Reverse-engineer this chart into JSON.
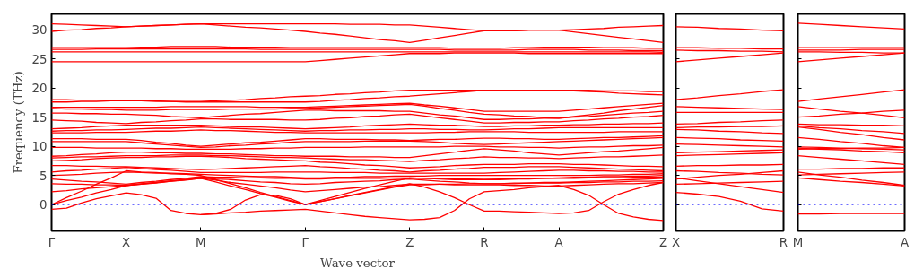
{
  "chart_data": [
    {
      "type": "line",
      "ylabel": "Frequency (THz)",
      "xlabel": "Wave vector",
      "grid": false,
      "line_style": "solid",
      "ylim": [
        -4.5,
        32.7
      ],
      "yticks": [
        0,
        5,
        10,
        15,
        20,
        25,
        30
      ],
      "categories": [
        "Γ",
        null,
        null,
        null,
        null,
        "X",
        null,
        null,
        null,
        null,
        "M",
        null,
        null,
        null,
        null,
        null,
        null,
        "Γ",
        null,
        null,
        null,
        null,
        null,
        null,
        "Z",
        null,
        null,
        null,
        null,
        "R",
        null,
        null,
        null,
        null,
        "A",
        null,
        null,
        null,
        null,
        null,
        null,
        "Z"
      ],
      "ref_lines": [
        {
          "axis": "y",
          "value": 0,
          "color": "#0000ff",
          "line_style": "dotted"
        }
      ],
      "series": [
        {
          "color": "#ff0000",
          "values": [
            31.0,
            30.9,
            30.8,
            30.7,
            30.6,
            30.5,
            30.6,
            30.7,
            30.8,
            30.9,
            31.0,
            31.0,
            31.0,
            31.0,
            31.0,
            31.0,
            31.0,
            31.0,
            31.0,
            31.0,
            30.9,
            30.9,
            30.9,
            30.8,
            30.8,
            30.6,
            30.4,
            30.2,
            30.0,
            29.8,
            29.8,
            29.8,
            29.9,
            29.9,
            29.9,
            30.0,
            30.1,
            30.2,
            30.4,
            30.5,
            30.6,
            30.7
          ]
        },
        {
          "color": "#ff0000",
          "values": [
            29.7,
            29.9,
            30.0,
            30.2,
            30.3,
            30.5,
            30.6,
            30.7,
            30.8,
            30.9,
            31.0,
            30.8,
            30.6,
            30.4,
            30.3,
            30.1,
            29.9,
            29.7,
            29.4,
            29.2,
            28.9,
            28.6,
            28.3,
            28.1,
            27.8,
            28.2,
            28.6,
            29.0,
            29.4,
            29.8,
            29.8,
            29.8,
            29.9,
            29.9,
            29.9,
            29.6,
            29.3,
            29.0,
            28.7,
            28.4,
            28.1,
            27.8
          ]
        },
        {
          "color": "#ff0000",
          "values": [
            26.9,
            26.9,
            26.9,
            26.9,
            26.9,
            26.9,
            27.0,
            27.0,
            27.1,
            27.1,
            27.1,
            27.1,
            27.0,
            27.0,
            27.0,
            27.0,
            26.9,
            26.9,
            26.9,
            26.9,
            26.9,
            26.9,
            26.9,
            26.9,
            26.9,
            26.9,
            26.9,
            26.8,
            26.8,
            26.8,
            26.8,
            26.9,
            26.9,
            27.0,
            27.0,
            27.0,
            27.0,
            26.9,
            26.9,
            26.9,
            26.8,
            26.8
          ]
        },
        {
          "color": "#ff0000",
          "values": [
            26.6,
            26.6,
            26.6,
            26.7,
            26.7,
            26.7,
            26.7,
            26.7,
            26.7,
            26.7,
            26.7,
            26.7,
            26.7,
            26.7,
            26.6,
            26.6,
            26.6,
            26.6,
            26.6,
            26.6,
            26.6,
            26.6,
            26.6,
            26.6,
            26.6,
            26.6,
            26.6,
            26.5,
            26.5,
            26.5,
            26.5,
            26.5,
            26.6,
            26.6,
            26.6,
            26.6,
            26.5,
            26.5,
            26.5,
            26.4,
            26.4,
            26.4
          ]
        },
        {
          "color": "#ff0000",
          "values": [
            26.2,
            26.2,
            26.2,
            26.2,
            26.2,
            26.2,
            26.2,
            26.2,
            26.2,
            26.2,
            26.2,
            26.2,
            26.2,
            26.2,
            26.2,
            26.2,
            26.2,
            26.2,
            26.2,
            26.2,
            26.2,
            26.2,
            26.2,
            26.2,
            26.2,
            26.2,
            26.2,
            26.2,
            26.2,
            26.2,
            26.2,
            26.2,
            26.2,
            26.2,
            26.2,
            26.2,
            26.2,
            26.2,
            26.2,
            26.2,
            26.2,
            26.1
          ]
        },
        {
          "color": "#ff0000",
          "values": [
            24.5,
            24.5,
            24.5,
            24.5,
            24.5,
            24.5,
            24.5,
            24.5,
            24.5,
            24.5,
            24.5,
            24.5,
            24.5,
            24.5,
            24.5,
            24.5,
            24.5,
            24.5,
            24.7,
            24.9,
            25.1,
            25.3,
            25.5,
            25.7,
            25.9,
            25.9,
            25.9,
            26.0,
            26.0,
            26.0,
            26.0,
            26.0,
            25.9,
            25.9,
            25.9,
            25.9,
            25.9,
            25.9,
            25.9,
            25.9,
            25.9,
            25.9
          ]
        },
        {
          "color": "#ff0000",
          "values": [
            18.0,
            18.0,
            17.9,
            17.9,
            17.8,
            17.8,
            17.8,
            17.8,
            17.7,
            17.7,
            17.7,
            17.8,
            17.9,
            18.0,
            18.2,
            18.3,
            18.5,
            18.6,
            18.7,
            18.9,
            19.0,
            19.2,
            19.3,
            19.5,
            19.6,
            19.6,
            19.6,
            19.6,
            19.6,
            19.6,
            19.6,
            19.6,
            19.6,
            19.6,
            19.6,
            19.6,
            19.6,
            19.5,
            19.5,
            19.5,
            19.4,
            19.4
          ]
        },
        {
          "color": "#ff0000",
          "values": [
            17.6,
            17.6,
            17.7,
            17.7,
            17.8,
            17.8,
            17.8,
            17.7,
            17.7,
            17.6,
            17.6,
            17.6,
            17.6,
            17.6,
            17.6,
            17.6,
            17.6,
            17.6,
            17.7,
            17.9,
            18.0,
            18.2,
            18.3,
            18.5,
            18.6,
            18.8,
            19.0,
            19.2,
            19.4,
            19.6,
            19.6,
            19.6,
            19.6,
            19.6,
            19.6,
            19.5,
            19.4,
            19.3,
            19.1,
            19.0,
            18.9,
            18.8
          ]
        },
        {
          "color": "#ff0000",
          "values": [
            16.7,
            16.7,
            16.7,
            16.7,
            16.7,
            16.7,
            16.7,
            16.7,
            16.8,
            16.8,
            16.8,
            16.8,
            16.8,
            16.8,
            16.7,
            16.7,
            16.7,
            16.7,
            16.8,
            16.9,
            17.0,
            17.1,
            17.2,
            17.3,
            17.4,
            17.1,
            16.9,
            16.6,
            16.3,
            16.0,
            16.0,
            16.0,
            16.0,
            16.0,
            16.0,
            16.2,
            16.4,
            16.6,
            16.8,
            17.0,
            17.2,
            17.4
          ]
        },
        {
          "color": "#ff0000",
          "values": [
            16.5,
            16.4,
            16.4,
            16.3,
            16.3,
            16.2,
            16.2,
            16.2,
            16.3,
            16.3,
            16.3,
            16.3,
            16.4,
            16.4,
            16.4,
            16.4,
            16.5,
            16.5,
            16.6,
            16.7,
            16.8,
            16.9,
            17.0,
            17.1,
            17.2,
            16.9,
            16.5,
            16.2,
            15.8,
            15.5,
            15.4,
            15.2,
            15.1,
            14.9,
            14.8,
            15.1,
            15.4,
            15.7,
            16.1,
            16.4,
            16.7,
            17.0
          ]
        },
        {
          "color": "#ff0000",
          "values": [
            15.7,
            15.7,
            15.6,
            15.6,
            15.5,
            15.5,
            15.4,
            15.3,
            15.1,
            15.0,
            14.9,
            15.1,
            15.3,
            15.5,
            15.6,
            15.8,
            16.0,
            16.2,
            16.2,
            16.1,
            16.1,
            16.1,
            16.1,
            16.0,
            16.0,
            15.7,
            15.4,
            15.2,
            14.9,
            14.6,
            14.6,
            14.7,
            14.7,
            14.8,
            14.8,
            15.0,
            15.1,
            15.3,
            15.5,
            15.7,
            15.8,
            16.0
          ]
        },
        {
          "color": "#ff0000",
          "values": [
            14.5,
            14.4,
            14.3,
            14.1,
            14.0,
            13.9,
            14.1,
            14.2,
            14.4,
            14.5,
            14.7,
            14.7,
            14.6,
            14.6,
            14.6,
            14.6,
            14.5,
            14.5,
            14.6,
            14.8,
            14.9,
            15.1,
            15.2,
            15.4,
            15.5,
            15.2,
            14.9,
            14.6,
            14.3,
            14.0,
            14.0,
            14.1,
            14.1,
            14.2,
            14.2,
            14.4,
            14.5,
            14.7,
            14.8,
            15.0,
            15.1,
            15.3
          ]
        },
        {
          "color": "#ff0000",
          "values": [
            13.0,
            13.1,
            13.2,
            13.4,
            13.5,
            13.6,
            13.6,
            13.6,
            13.6,
            13.6,
            13.6,
            13.5,
            13.4,
            13.3,
            13.3,
            13.2,
            13.1,
            13.0,
            13.1,
            13.2,
            13.3,
            13.5,
            13.6,
            13.7,
            13.8,
            13.7,
            13.6,
            13.6,
            13.5,
            13.4,
            13.4,
            13.5,
            13.5,
            13.6,
            13.6,
            13.7,
            13.7,
            13.8,
            13.8,
            13.9,
            13.9,
            14.0
          ]
        },
        {
          "color": "#ff0000",
          "values": [
            12.6,
            12.7,
            12.7,
            12.8,
            12.8,
            12.9,
            13.0,
            13.1,
            13.1,
            13.2,
            13.3,
            13.2,
            13.1,
            13.0,
            12.9,
            12.8,
            12.7,
            12.6,
            12.7,
            12.7,
            12.8,
            12.8,
            12.9,
            12.9,
            13.0,
            13.0,
            12.9,
            12.9,
            12.8,
            12.8,
            12.9,
            13.0,
            13.0,
            13.1,
            13.2,
            13.2,
            13.2,
            13.2,
            13.2,
            13.2,
            13.2,
            13.2
          ]
        },
        {
          "color": "#ff0000",
          "values": [
            12.3,
            12.3,
            12.3,
            12.4,
            12.4,
            12.4,
            12.5,
            12.6,
            12.6,
            12.7,
            12.8,
            12.7,
            12.7,
            12.6,
            12.5,
            12.4,
            12.4,
            12.3,
            12.3,
            12.3,
            12.3,
            12.3,
            12.3,
            12.3,
            12.3,
            12.3,
            12.4,
            12.4,
            12.5,
            12.5,
            12.5,
            12.5,
            12.4,
            12.4,
            12.4,
            12.4,
            12.4,
            12.4,
            12.5,
            12.5,
            12.5,
            12.5
          ]
        },
        {
          "color": "#ff0000",
          "values": [
            11.3,
            11.3,
            11.3,
            11.2,
            11.2,
            11.2,
            11.0,
            10.7,
            10.5,
            10.2,
            10.0,
            10.2,
            10.4,
            10.6,
            10.7,
            10.9,
            11.1,
            11.3,
            11.3,
            11.2,
            11.2,
            11.2,
            11.1,
            11.1,
            11.0,
            11.1,
            11.2,
            11.2,
            11.3,
            11.4,
            11.4,
            11.3,
            11.3,
            11.2,
            11.2,
            11.3,
            11.4,
            11.5,
            11.5,
            11.6,
            11.7,
            11.8
          ]
        },
        {
          "color": "#ff0000",
          "values": [
            10.8,
            10.8,
            10.8,
            10.8,
            10.8,
            10.8,
            10.6,
            10.4,
            10.2,
            10.0,
            9.8,
            9.9,
            10.1,
            10.2,
            10.4,
            10.5,
            10.7,
            10.8,
            10.8,
            10.8,
            10.8,
            10.9,
            10.9,
            10.9,
            10.9,
            10.8,
            10.7,
            10.5,
            10.4,
            10.3,
            10.4,
            10.5,
            10.6,
            10.7,
            10.8,
            10.9,
            11.0,
            11.1,
            11.2,
            11.3,
            11.4,
            11.5
          ]
        },
        {
          "color": "#ff0000",
          "values": [
            9.8,
            9.8,
            9.8,
            9.7,
            9.7,
            9.7,
            9.7,
            9.6,
            9.6,
            9.5,
            9.5,
            9.5,
            9.5,
            9.6,
            9.6,
            9.7,
            9.7,
            9.8,
            9.8,
            9.8,
            9.8,
            9.9,
            9.9,
            9.9,
            9.9,
            9.9,
            9.9,
            10.0,
            10.0,
            10.0,
            9.9,
            9.9,
            9.8,
            9.8,
            9.7,
            9.8,
            9.9,
            9.9,
            10.0,
            10.1,
            10.1,
            10.2
          ]
        },
        {
          "color": "#ff0000",
          "values": [
            8.3,
            8.4,
            8.6,
            8.7,
            8.9,
            9.0,
            9.0,
            8.9,
            8.9,
            8.8,
            8.8,
            8.7,
            8.7,
            8.6,
            8.5,
            8.4,
            8.4,
            8.3,
            8.3,
            8.3,
            8.2,
            8.2,
            8.2,
            8.1,
            8.1,
            8.4,
            8.7,
            9.0,
            9.3,
            9.6,
            9.4,
            9.2,
            8.9,
            8.7,
            8.5,
            8.7,
            8.9,
            9.1,
            9.2,
            9.4,
            9.6,
            9.8
          ]
        },
        {
          "color": "#ff0000",
          "values": [
            8.0,
            8.1,
            8.2,
            8.2,
            8.3,
            8.4,
            8.4,
            8.4,
            8.5,
            8.5,
            8.5,
            8.4,
            8.4,
            8.3,
            8.2,
            8.1,
            8.1,
            8.0,
            7.9,
            7.8,
            7.7,
            7.7,
            7.6,
            7.5,
            7.4,
            7.6,
            7.7,
            7.9,
            8.0,
            8.2,
            8.1,
            8.1,
            8.0,
            8.0,
            7.9,
            8.0,
            8.1,
            8.2,
            8.2,
            8.3,
            8.4,
            8.5
          ]
        },
        {
          "color": "#ff0000",
          "values": [
            7.5,
            7.6,
            7.7,
            7.9,
            8.0,
            8.1,
            8.1,
            8.2,
            8.2,
            8.3,
            8.3,
            8.2,
            8.1,
            7.9,
            7.8,
            7.7,
            7.6,
            7.5,
            7.3,
            7.2,
            7.0,
            6.8,
            6.7,
            6.5,
            6.3,
            6.4,
            6.5,
            6.7,
            6.8,
            6.9,
            6.9,
            6.9,
            7.0,
            7.0,
            7.0,
            6.9,
            6.9,
            6.8,
            6.7,
            6.6,
            6.6,
            6.5
          ]
        },
        {
          "color": "#ff0000",
          "values": [
            6.7,
            6.7,
            6.6,
            6.6,
            6.5,
            6.5,
            6.4,
            6.3,
            6.2,
            6.1,
            6.0,
            6.1,
            6.2,
            6.3,
            6.4,
            6.5,
            6.6,
            6.7,
            6.5,
            6.4,
            6.2,
            6.1,
            5.9,
            5.8,
            5.6,
            5.8,
            5.9,
            6.1,
            6.2,
            6.4,
            6.4,
            6.4,
            6.5,
            6.5,
            6.5,
            6.4,
            6.3,
            6.2,
            6.1,
            6.0,
            5.9,
            5.8
          ]
        },
        {
          "color": "#ff0000",
          "values": [
            5.6,
            5.8,
            5.9,
            6.1,
            6.2,
            6.4,
            6.2,
            6.0,
            5.9,
            5.7,
            5.5,
            5.5,
            5.5,
            5.5,
            5.5,
            5.6,
            5.6,
            5.6,
            5.6,
            5.5,
            5.5,
            5.5,
            5.4,
            5.4,
            5.4,
            5.4,
            5.4,
            5.4,
            5.4,
            5.4,
            5.5,
            5.6,
            5.7,
            5.8,
            5.9,
            5.9,
            5.8,
            5.8,
            5.7,
            5.7,
            5.6,
            5.6
          ]
        },
        {
          "color": "#ff0000",
          "values": [
            5.0,
            5.1,
            5.2,
            5.4,
            5.5,
            5.6,
            5.5,
            5.4,
            5.4,
            5.3,
            5.2,
            5.1,
            5.0,
            4.9,
            4.8,
            4.8,
            4.7,
            4.6,
            4.6,
            4.7,
            4.7,
            4.8,
            4.8,
            4.9,
            4.9,
            4.9,
            5.0,
            5.0,
            5.0,
            5.0,
            5.0,
            5.0,
            5.0,
            5.0,
            5.0,
            5.0,
            5.0,
            5.1,
            5.1,
            5.2,
            5.2,
            5.3
          ]
        },
        {
          "color": "#ff0000",
          "values": [
            4.4,
            4.2,
            4.0,
            3.9,
            3.7,
            3.5,
            3.8,
            4.0,
            4.3,
            4.5,
            4.8,
            4.7,
            4.7,
            4.6,
            4.6,
            4.5,
            4.5,
            4.4,
            4.4,
            4.5,
            4.5,
            4.5,
            4.5,
            4.6,
            4.6,
            4.5,
            4.5,
            4.4,
            4.4,
            4.3,
            4.4,
            4.4,
            4.5,
            4.5,
            4.6,
            4.7,
            4.7,
            4.8,
            4.8,
            4.9,
            4.9,
            5.0
          ]
        },
        {
          "color": "#ff0000",
          "values": [
            3.6,
            3.5,
            3.5,
            3.4,
            3.4,
            3.3,
            3.6,
            3.8,
            4.1,
            4.3,
            4.6,
            4.4,
            4.3,
            4.1,
            3.9,
            3.8,
            3.6,
            3.5,
            3.6,
            3.8,
            3.9,
            4.0,
            4.1,
            4.3,
            4.4,
            4.2,
            4.0,
            3.9,
            3.7,
            3.6,
            3.6,
            3.7,
            3.7,
            3.8,
            3.8,
            3.9,
            4.0,
            4.1,
            4.2,
            4.3,
            4.4,
            4.5
          ]
        },
        {
          "color": "#ff0000",
          "values": [
            2.2,
            2.4,
            2.7,
            2.9,
            3.1,
            3.3,
            3.5,
            3.8,
            4.0,
            4.3,
            4.5,
            4.2,
            3.8,
            3.5,
            3.2,
            2.9,
            2.5,
            2.2,
            2.4,
            2.6,
            2.8,
            3.0,
            3.1,
            3.3,
            3.5,
            3.5,
            3.5,
            3.4,
            3.4,
            3.4,
            3.4,
            3.3,
            3.3,
            3.2,
            3.2,
            3.3,
            3.4,
            3.5,
            3.6,
            3.6,
            3.7,
            3.8
          ]
        },
        {
          "color": "#ff0000",
          "values": [
            -0.8,
            -0.6,
            0.3,
            1.0,
            1.5,
            2.0,
            1.7,
            1.1,
            -1.0,
            -1.5,
            -1.7,
            -1.5,
            -0.8,
            0.8,
            1.7,
            1.6,
            1.0,
            0.0,
            0.5,
            1.0,
            1.6,
            2.1,
            2.6,
            3.1,
            3.6,
            3.0,
            2.2,
            1.2,
            0.0,
            -1.1,
            -1.1,
            -1.2,
            -1.3,
            -1.4,
            -1.5,
            -1.4,
            -1.0,
            0.5,
            1.8,
            2.6,
            3.3,
            3.8
          ]
        },
        {
          "color": "#ff0000",
          "values": [
            0.0,
            0.7,
            1.3,
            2.0,
            2.6,
            3.3,
            3.5,
            3.7,
            4.0,
            4.2,
            4.5,
            3.9,
            3.2,
            2.6,
            1.9,
            1.3,
            0.6,
            0.0,
            0.7,
            1.4,
            2.1,
            2.8,
            3.4,
            4.0,
            4.6,
            4.5,
            4.4,
            4.3,
            4.3,
            4.3,
            4.3,
            4.4,
            4.4,
            4.5,
            4.5,
            4.5,
            4.6,
            4.6,
            4.6,
            4.7,
            4.7,
            4.7
          ]
        },
        {
          "color": "#ff0000",
          "values": [
            0.0,
            1.2,
            2.3,
            3.5,
            4.6,
            5.8,
            5.6,
            5.5,
            5.3,
            5.2,
            5.0,
            4.3,
            3.6,
            2.9,
            2.1,
            1.4,
            0.7,
            0.0,
            0.5,
            1.0,
            1.5,
            2.0,
            2.5,
            3.0,
            3.4,
            3.4,
            3.5,
            3.5,
            3.6,
            3.6,
            3.6,
            3.6,
            3.7,
            3.7,
            3.7,
            3.8,
            3.8,
            3.9,
            3.9,
            4.0,
            4.0,
            4.1
          ]
        },
        {
          "color": "#ff0000",
          "values": [
            null,
            null,
            null,
            null,
            null,
            null,
            null,
            null,
            null,
            null,
            -1.7,
            -1.6,
            -1.4,
            -1.3,
            -1.1,
            -1.0,
            -0.9,
            -0.8,
            -1.1,
            -1.4,
            -1.7,
            -2.0,
            -2.2,
            -2.4,
            -2.6,
            -2.5,
            -2.2,
            -1.0,
            1.0,
            2.2,
            2.4,
            2.6,
            2.9,
            3.1,
            3.3,
            2.6,
            1.6,
            0.0,
            -1.5,
            -2.1,
            -2.5,
            -2.7
          ]
        }
      ]
    },
    {
      "type": "line",
      "grid": false,
      "tick_labels": "x",
      "ylim": [
        -4.5,
        32.7
      ],
      "yticks": [
        0,
        5,
        10,
        15,
        20,
        25,
        30
      ],
      "categories": [
        "X",
        null,
        null,
        null,
        null,
        "R"
      ],
      "ref_lines": [
        {
          "axis": "y",
          "value": 0,
          "color": "#0000ff",
          "line_style": "dotted"
        }
      ],
      "series": [
        {
          "color": "#ff0000",
          "values": [
            30.5,
            30.4,
            30.2,
            30.1,
            29.9,
            29.8
          ]
        },
        {
          "color": "#ff0000",
          "values": [
            26.9,
            26.9,
            26.8,
            26.8,
            26.7,
            26.7
          ]
        },
        {
          "color": "#ff0000",
          "values": [
            26.5,
            26.4,
            26.4,
            26.3,
            26.3,
            26.2
          ]
        },
        {
          "color": "#ff0000",
          "values": [
            24.5,
            24.8,
            25.1,
            25.4,
            25.7,
            26.0
          ]
        },
        {
          "color": "#ff0000",
          "values": [
            18.0,
            18.3,
            18.7,
            19.0,
            19.4,
            19.7
          ]
        },
        {
          "color": "#ff0000",
          "values": [
            16.8,
            16.7,
            16.6,
            16.5,
            16.4,
            16.3
          ]
        },
        {
          "color": "#ff0000",
          "values": [
            15.8,
            15.8,
            15.8,
            15.8,
            15.8,
            15.8
          ]
        },
        {
          "color": "#ff0000",
          "values": [
            13.8,
            13.9,
            14.1,
            14.2,
            14.4,
            14.5
          ]
        },
        {
          "color": "#ff0000",
          "values": [
            13.2,
            13.3,
            13.3,
            13.4,
            13.4,
            13.5
          ]
        },
        {
          "color": "#ff0000",
          "values": [
            12.9,
            12.8,
            12.6,
            12.5,
            12.3,
            12.2
          ]
        },
        {
          "color": "#ff0000",
          "values": [
            11.5,
            11.4,
            11.3,
            11.1,
            11.0,
            10.9
          ]
        },
        {
          "color": "#ff0000",
          "values": [
            10.4,
            10.3,
            10.2,
            10.1,
            10.0,
            9.9
          ]
        },
        {
          "color": "#ff0000",
          "values": [
            8.9,
            9.0,
            9.1,
            9.2,
            9.3,
            9.4
          ]
        },
        {
          "color": "#ff0000",
          "values": [
            8.4,
            8.5,
            8.6,
            8.7,
            8.8,
            8.9
          ]
        },
        {
          "color": "#ff0000",
          "values": [
            6.6,
            6.7,
            6.7,
            6.8,
            6.8,
            6.9
          ]
        },
        {
          "color": "#ff0000",
          "values": [
            5.8,
            5.7,
            5.5,
            5.4,
            5.2,
            5.1
          ]
        },
        {
          "color": "#ff0000",
          "values": [
            4.4,
            4.7,
            5.0,
            5.2,
            5.5,
            5.8
          ]
        },
        {
          "color": "#ff0000",
          "values": [
            3.5,
            3.6,
            3.7,
            3.8,
            3.9,
            4.0
          ]
        },
        {
          "color": "#ff0000",
          "values": [
            4.6,
            4.1,
            3.6,
            3.1,
            2.6,
            2.1
          ]
        },
        {
          "color": "#ff0000",
          "values": [
            2.1,
            1.8,
            1.4,
            0.6,
            -0.7,
            -1.1
          ]
        }
      ]
    },
    {
      "type": "line",
      "grid": false,
      "tick_labels": "x",
      "ylim": [
        -4.5,
        32.7
      ],
      "yticks": [
        0,
        5,
        10,
        15,
        20,
        25,
        30
      ],
      "categories": [
        "M",
        null,
        null,
        null,
        null,
        "A"
      ],
      "ref_lines": [
        {
          "axis": "y",
          "value": 0,
          "color": "#0000ff",
          "line_style": "dotted"
        }
      ],
      "series": [
        {
          "color": "#ff0000",
          "values": [
            31.1,
            30.9,
            30.7,
            30.5,
            30.3,
            30.1
          ]
        },
        {
          "color": "#ff0000",
          "values": [
            26.9,
            26.9,
            26.9,
            26.9,
            26.9,
            26.9
          ]
        },
        {
          "color": "#ff0000",
          "values": [
            26.5,
            26.5,
            26.5,
            26.6,
            26.6,
            26.6
          ]
        },
        {
          "color": "#ff0000",
          "values": [
            26.2,
            26.2,
            26.1,
            26.1,
            26.0,
            26.0
          ]
        },
        {
          "color": "#ff0000",
          "values": [
            24.5,
            24.8,
            25.1,
            25.4,
            25.7,
            26.0
          ]
        },
        {
          "color": "#ff0000",
          "values": [
            17.7,
            18.1,
            18.5,
            18.9,
            19.3,
            19.7
          ]
        },
        {
          "color": "#ff0000",
          "values": [
            16.8,
            16.4,
            16.0,
            15.7,
            15.3,
            14.9
          ]
        },
        {
          "color": "#ff0000",
          "values": [
            15.0,
            15.2,
            15.5,
            15.7,
            16.0,
            16.2
          ]
        },
        {
          "color": "#ff0000",
          "values": [
            13.8,
            13.7,
            13.7,
            13.6,
            13.6,
            13.5
          ]
        },
        {
          "color": "#ff0000",
          "values": [
            13.5,
            13.2,
            13.0,
            12.7,
            12.5,
            12.2
          ]
        },
        {
          "color": "#ff0000",
          "values": [
            13.3,
            12.9,
            12.4,
            12.0,
            11.5,
            11.1
          ]
        },
        {
          "color": "#ff0000",
          "values": [
            11.5,
            11.2,
            10.8,
            10.5,
            10.1,
            9.8
          ]
        },
        {
          "color": "#ff0000",
          "values": [
            9.9,
            9.8,
            9.7,
            9.6,
            9.5,
            9.4
          ]
        },
        {
          "color": "#ff0000",
          "values": [
            9.7,
            9.5,
            9.4,
            9.2,
            9.1,
            8.9
          ]
        },
        {
          "color": "#ff0000",
          "values": [
            9.5,
            9.6,
            9.6,
            9.7,
            9.7,
            9.8
          ]
        },
        {
          "color": "#ff0000",
          "values": [
            8.4,
            8.1,
            7.8,
            7.5,
            7.2,
            6.9
          ]
        },
        {
          "color": "#ff0000",
          "values": [
            6.1,
            6.1,
            6.2,
            6.2,
            6.3,
            6.3
          ]
        },
        {
          "color": "#ff0000",
          "values": [
            5.6,
            5.1,
            4.7,
            4.2,
            3.8,
            3.3
          ]
        },
        {
          "color": "#ff0000",
          "values": [
            5.1,
            5.2,
            5.3,
            5.4,
            5.5,
            5.6
          ]
        },
        {
          "color": "#ff0000",
          "values": [
            4.6,
            4.3,
            4.0,
            3.8,
            3.5,
            3.2
          ]
        },
        {
          "color": "#ff0000",
          "values": [
            -1.6,
            -1.6,
            -1.5,
            -1.5,
            -1.5,
            -1.5
          ]
        }
      ]
    }
  ]
}
